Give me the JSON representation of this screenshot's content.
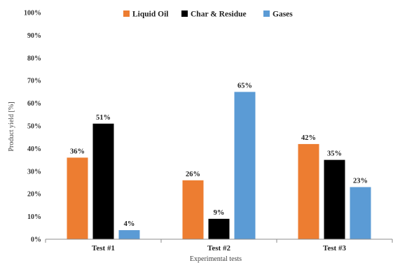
{
  "chart_data": {
    "type": "bar",
    "categories": [
      "Test #1",
      "Test #2",
      "Test #3"
    ],
    "series": [
      {
        "name": "Liquid Oil",
        "values": [
          36,
          26,
          42
        ],
        "labels": [
          "36%",
          "26%",
          "42%"
        ],
        "color": "#ED7D31"
      },
      {
        "name": "Char & Residue",
        "values": [
          51,
          9,
          35
        ],
        "labels": [
          "51%",
          "9%",
          "35%"
        ],
        "color": "#000000"
      },
      {
        "name": "Gases",
        "values": [
          4,
          65,
          23
        ],
        "labels": [
          "4%",
          "65%",
          "23%"
        ],
        "color": "#5B9BD5"
      }
    ],
    "xlabel": "Experimental tests",
    "ylabel": "Product yield [%]",
    "ylim": [
      0,
      100
    ],
    "yticks": [
      {
        "value": 0,
        "label": "0%"
      },
      {
        "value": 10,
        "label": "10%"
      },
      {
        "value": 20,
        "label": "20%"
      },
      {
        "value": 30,
        "label": "30%"
      },
      {
        "value": 40,
        "label": "40%"
      },
      {
        "value": 50,
        "label": "50%"
      },
      {
        "value": 60,
        "label": "60%"
      },
      {
        "value": 70,
        "label": "70%"
      },
      {
        "value": 80,
        "label": "80%"
      },
      {
        "value": 90,
        "label": "90%"
      },
      {
        "value": 100,
        "label": "100%"
      }
    ],
    "grid": false,
    "legend": "top-center"
  }
}
